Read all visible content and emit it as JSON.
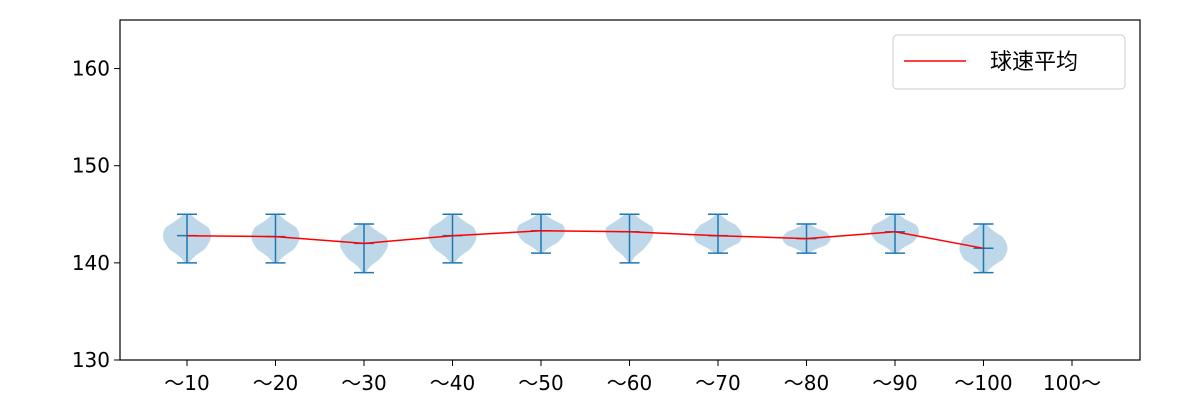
{
  "chart_data": {
    "type": "violin",
    "title": "",
    "xlabel": "",
    "ylabel": "",
    "categories": [
      "～10",
      "～20",
      "～30",
      "～40",
      "～50",
      "～60",
      "～70",
      "～80",
      "～90",
      "～100",
      "100～"
    ],
    "ylim": [
      130,
      165
    ],
    "yticks": [
      130,
      140,
      150,
      160
    ],
    "grid": false,
    "legend_position": "top-right",
    "violins": [
      {
        "min": 140,
        "max": 145,
        "mean": 142.8
      },
      {
        "min": 140,
        "max": 145,
        "mean": 142.7
      },
      {
        "min": 139,
        "max": 144,
        "mean": 142.0
      },
      {
        "min": 140,
        "max": 145,
        "mean": 142.8
      },
      {
        "min": 141,
        "max": 145,
        "mean": 143.3
      },
      {
        "min": 140,
        "max": 145,
        "mean": 143.2
      },
      {
        "min": 141,
        "max": 145,
        "mean": 142.8
      },
      {
        "min": 141,
        "max": 144,
        "mean": 142.5
      },
      {
        "min": 141,
        "max": 145,
        "mean": 143.2
      },
      {
        "min": 139,
        "max": 144,
        "mean": 141.5
      },
      null
    ],
    "series": [
      {
        "name": "球速平均",
        "values": [
          142.8,
          142.7,
          142.0,
          142.8,
          143.3,
          143.2,
          142.8,
          142.5,
          143.2,
          141.5,
          null
        ],
        "color": "#ff0000"
      }
    ],
    "colors": {
      "violin_fill": "#a8c9e2",
      "violin_line": "#1f77b4",
      "axis": "#000000"
    }
  }
}
